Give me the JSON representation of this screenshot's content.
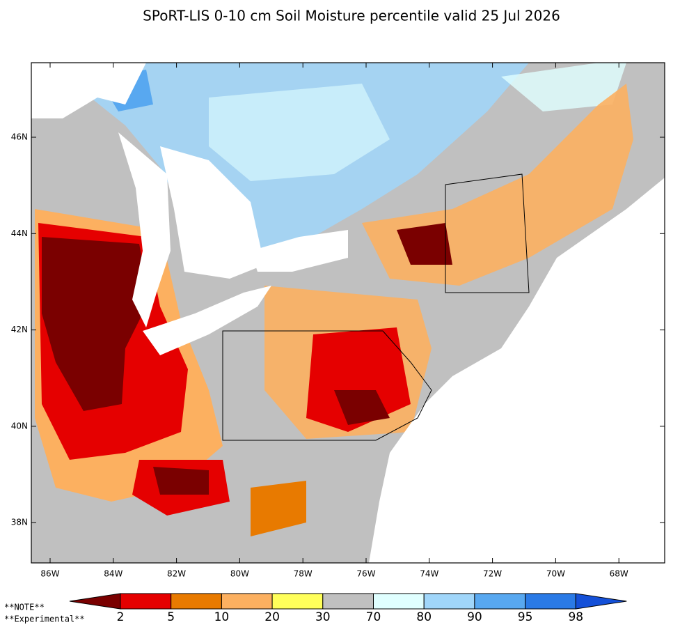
{
  "title": "SPoRT-LIS 0-10 cm Soil Moisture percentile valid 25 Jul 2026",
  "lat_labels": [
    "46N",
    "44N",
    "42N",
    "40N",
    "38N"
  ],
  "lon_labels": [
    "86W",
    "84W",
    "82W",
    "80W",
    "78W",
    "76W",
    "74W",
    "72W",
    "70W",
    "68W"
  ],
  "notes": [
    "**NOTE**",
    "**Experimental**"
  ],
  "colorbar": {
    "colors": [
      "#7a0000",
      "#e50000",
      "#e87a00",
      "#fcb060",
      "#ffff5a",
      "#c0c0c0",
      "#e0ffff",
      "#a0d6fa",
      "#58a8f0",
      "#2a7ae6",
      "#1450d8"
    ],
    "labels": [
      2,
      5,
      10,
      20,
      30,
      70,
      80,
      90,
      95,
      98
    ]
  }
}
